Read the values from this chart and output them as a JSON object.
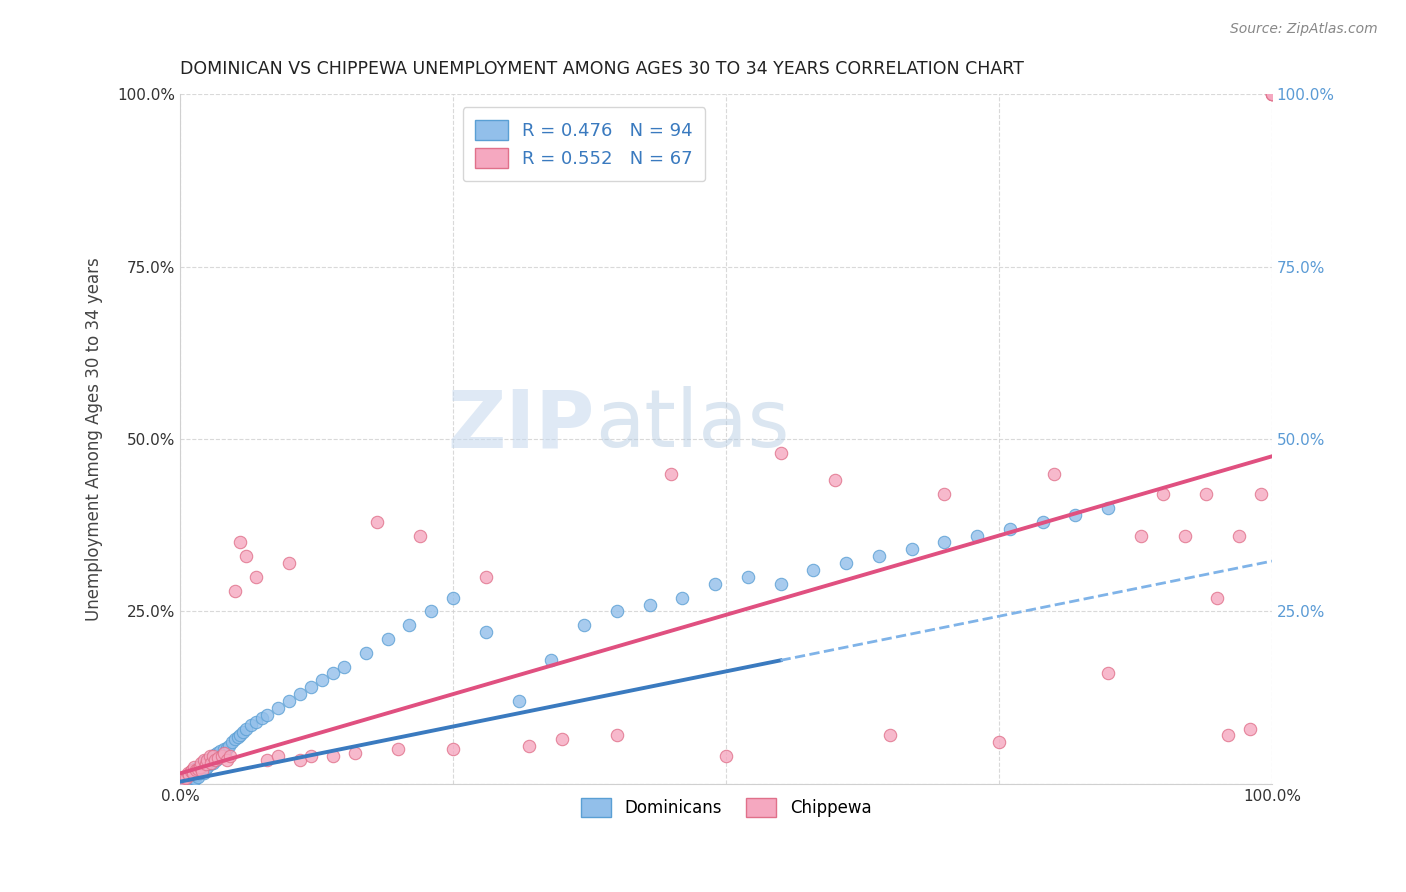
{
  "title": "DOMINICAN VS CHIPPEWA UNEMPLOYMENT AMONG AGES 30 TO 34 YEARS CORRELATION CHART",
  "source": "Source: ZipAtlas.com",
  "ylabel": "Unemployment Among Ages 30 to 34 years",
  "xlim": [
    0,
    1.0
  ],
  "ylim": [
    0,
    1.0
  ],
  "dominicans_color": "#92bfea",
  "dominicans_edge": "#5a9fd4",
  "chippewa_color": "#f5a8c0",
  "chippewa_edge": "#e0708a",
  "dominicans_line_color": "#3a7abf",
  "chippewa_line_color": "#e05080",
  "dominicans_dash_color": "#7fb3e8",
  "legend_label_1": "R = 0.476   N = 94",
  "legend_label_2": "R = 0.552   N = 67",
  "legend_text_color": "#3a7abf",
  "right_ytick_color": "#5b9bd5",
  "watermark_zip": "ZIP",
  "watermark_atlas": "atlas",
  "dom_x": [
    0.002,
    0.003,
    0.004,
    0.005,
    0.005,
    0.006,
    0.006,
    0.007,
    0.007,
    0.008,
    0.008,
    0.009,
    0.009,
    0.01,
    0.01,
    0.011,
    0.011,
    0.012,
    0.012,
    0.013,
    0.013,
    0.014,
    0.014,
    0.015,
    0.015,
    0.016,
    0.016,
    0.017,
    0.017,
    0.018,
    0.019,
    0.02,
    0.021,
    0.022,
    0.022,
    0.023,
    0.024,
    0.025,
    0.026,
    0.027,
    0.028,
    0.03,
    0.031,
    0.033,
    0.034,
    0.035,
    0.037,
    0.038,
    0.04,
    0.041,
    0.043,
    0.045,
    0.048,
    0.05,
    0.053,
    0.055,
    0.058,
    0.06,
    0.065,
    0.07,
    0.075,
    0.08,
    0.09,
    0.1,
    0.11,
    0.12,
    0.13,
    0.14,
    0.15,
    0.17,
    0.19,
    0.21,
    0.23,
    0.25,
    0.28,
    0.31,
    0.34,
    0.37,
    0.4,
    0.43,
    0.46,
    0.49,
    0.52,
    0.55,
    0.58,
    0.61,
    0.64,
    0.67,
    0.7,
    0.73,
    0.76,
    0.79,
    0.82,
    0.85
  ],
  "dom_y": [
    0.002,
    0.005,
    0.003,
    0.008,
    0.004,
    0.006,
    0.01,
    0.009,
    0.004,
    0.012,
    0.007,
    0.008,
    0.015,
    0.006,
    0.012,
    0.018,
    0.008,
    0.01,
    0.02,
    0.009,
    0.015,
    0.022,
    0.007,
    0.018,
    0.012,
    0.025,
    0.01,
    0.02,
    0.015,
    0.025,
    0.018,
    0.022,
    0.028,
    0.015,
    0.032,
    0.02,
    0.03,
    0.025,
    0.035,
    0.028,
    0.038,
    0.03,
    0.042,
    0.035,
    0.045,
    0.038,
    0.048,
    0.042,
    0.05,
    0.045,
    0.052,
    0.055,
    0.06,
    0.065,
    0.068,
    0.07,
    0.075,
    0.08,
    0.085,
    0.09,
    0.095,
    0.1,
    0.11,
    0.12,
    0.13,
    0.14,
    0.15,
    0.16,
    0.17,
    0.19,
    0.21,
    0.23,
    0.25,
    0.27,
    0.22,
    0.12,
    0.18,
    0.23,
    0.25,
    0.26,
    0.27,
    0.29,
    0.3,
    0.29,
    0.31,
    0.32,
    0.33,
    0.34,
    0.35,
    0.36,
    0.37,
    0.38,
    0.39,
    0.4
  ],
  "chip_x": [
    0.002,
    0.004,
    0.005,
    0.007,
    0.008,
    0.01,
    0.011,
    0.012,
    0.013,
    0.015,
    0.016,
    0.018,
    0.019,
    0.02,
    0.022,
    0.024,
    0.025,
    0.027,
    0.028,
    0.03,
    0.032,
    0.035,
    0.038,
    0.04,
    0.043,
    0.046,
    0.05,
    0.055,
    0.06,
    0.07,
    0.08,
    0.09,
    0.1,
    0.11,
    0.12,
    0.14,
    0.16,
    0.18,
    0.2,
    0.22,
    0.25,
    0.28,
    0.32,
    0.35,
    0.4,
    0.45,
    0.5,
    0.55,
    0.6,
    0.65,
    0.7,
    0.75,
    0.8,
    0.85,
    0.88,
    0.9,
    0.92,
    0.94,
    0.95,
    0.96,
    0.97,
    0.98,
    0.99,
    1.0,
    1.0,
    1.0,
    1.0
  ],
  "chip_y": [
    0.005,
    0.01,
    0.008,
    0.015,
    0.012,
    0.018,
    0.02,
    0.015,
    0.025,
    0.02,
    0.022,
    0.025,
    0.03,
    0.018,
    0.035,
    0.028,
    0.035,
    0.04,
    0.03,
    0.04,
    0.035,
    0.038,
    0.04,
    0.045,
    0.035,
    0.04,
    0.28,
    0.35,
    0.33,
    0.3,
    0.035,
    0.04,
    0.32,
    0.035,
    0.04,
    0.04,
    0.045,
    0.38,
    0.05,
    0.36,
    0.05,
    0.3,
    0.055,
    0.065,
    0.07,
    0.45,
    0.04,
    0.48,
    0.44,
    0.07,
    0.42,
    0.06,
    0.45,
    0.16,
    0.36,
    0.42,
    0.36,
    0.42,
    0.27,
    0.07,
    0.36,
    0.08,
    0.42,
    1.0,
    1.0,
    1.0,
    1.0
  ]
}
